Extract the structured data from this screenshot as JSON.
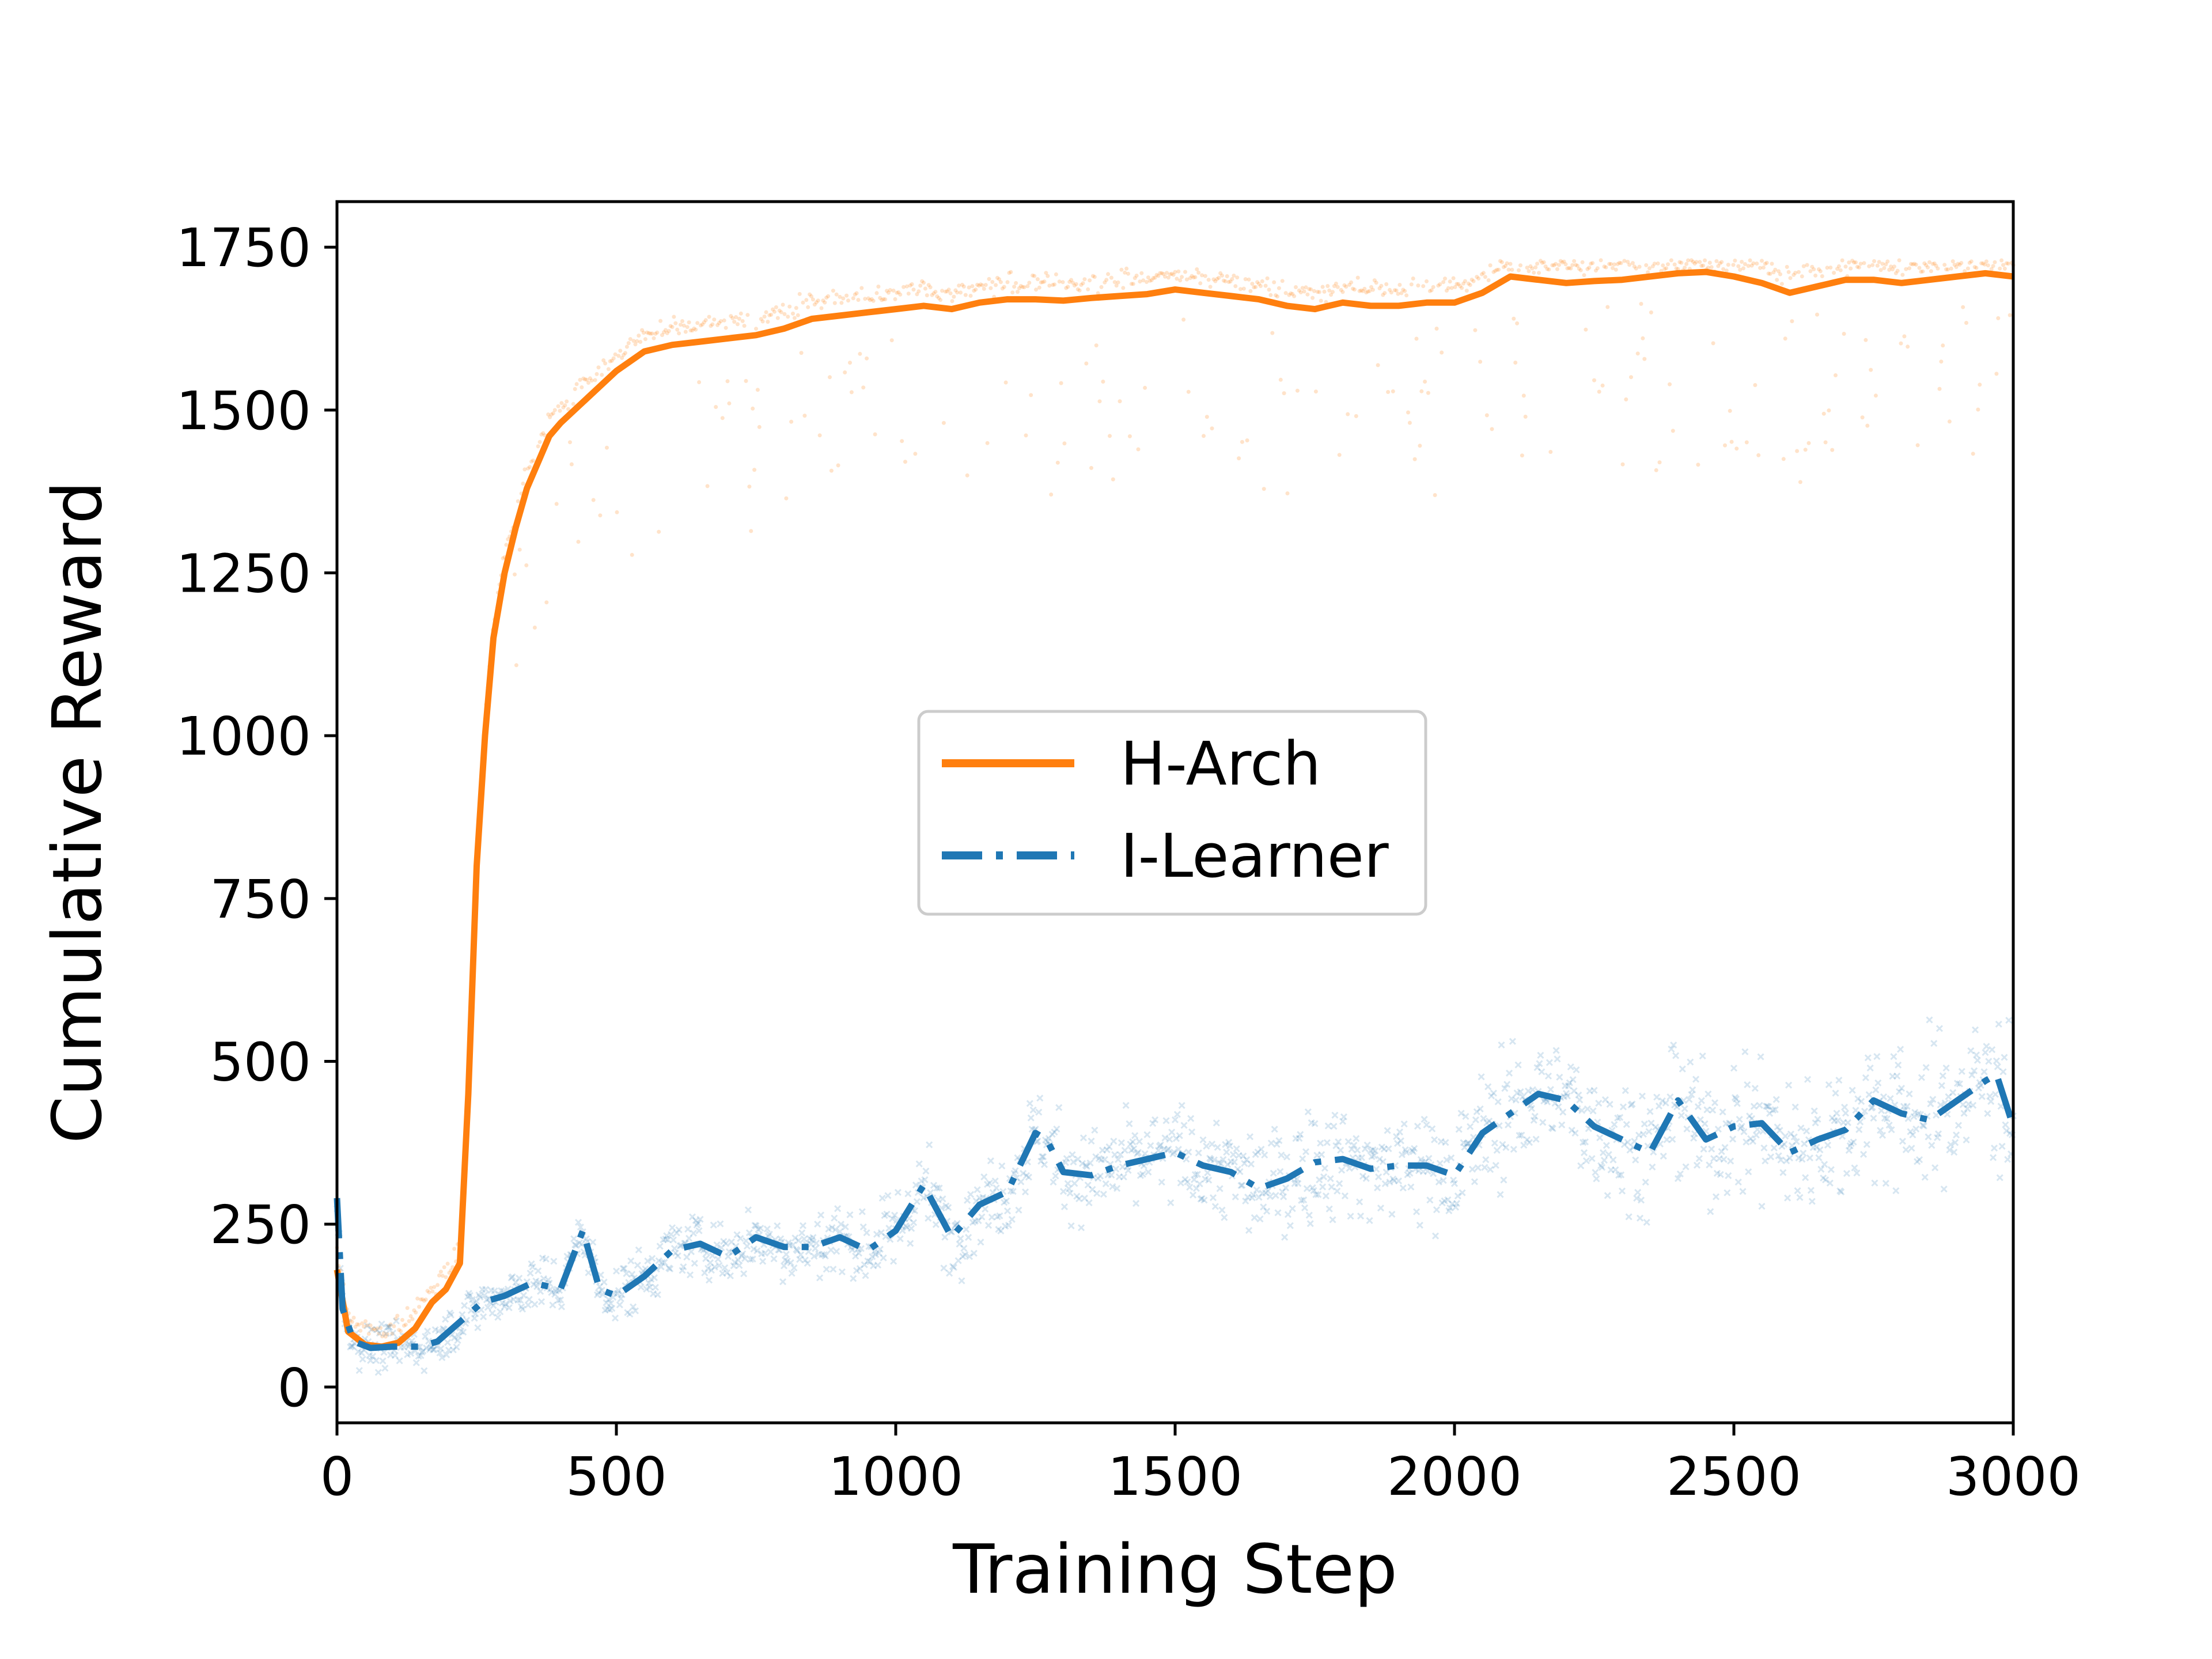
{
  "chart_data": {
    "type": "line",
    "title": "",
    "xlabel": "Training Step",
    "ylabel": "Cumulative Reward",
    "xlim": [
      0,
      3000
    ],
    "ylim": [
      -55,
      1820
    ],
    "grid": false,
    "legend_position": "center",
    "x_ticks": [
      0,
      500,
      1000,
      1500,
      2000,
      2500,
      3000
    ],
    "x_tick_labels": [
      "0",
      "500",
      "1000",
      "1500",
      "2000",
      "2500",
      "3000"
    ],
    "y_ticks": [
      0,
      250,
      500,
      750,
      1000,
      1250,
      1500,
      1750
    ],
    "y_tick_labels": [
      "0",
      "250",
      "500",
      "750",
      "1000",
      "1250",
      "1500",
      "1750"
    ],
    "series": [
      {
        "name": "H-Arch",
        "color": "#ff7f0e",
        "line_style": "solid",
        "raw_marker": "dot",
        "x": [
          0,
          20,
          50,
          80,
          110,
          140,
          170,
          195,
          220,
          235,
          250,
          265,
          280,
          300,
          320,
          340,
          360,
          380,
          400,
          450,
          500,
          550,
          600,
          650,
          700,
          750,
          800,
          850,
          900,
          950,
          1000,
          1050,
          1100,
          1150,
          1200,
          1250,
          1300,
          1350,
          1400,
          1450,
          1500,
          1550,
          1600,
          1650,
          1700,
          1750,
          1800,
          1850,
          1900,
          1950,
          2000,
          2050,
          2100,
          2150,
          2200,
          2250,
          2300,
          2350,
          2400,
          2450,
          2500,
          2550,
          2600,
          2650,
          2700,
          2750,
          2800,
          2850,
          2900,
          2950,
          3000
        ],
        "values": [
          180,
          85,
          65,
          62,
          68,
          90,
          130,
          150,
          190,
          450,
          800,
          1000,
          1150,
          1250,
          1320,
          1380,
          1420,
          1460,
          1480,
          1520,
          1560,
          1590,
          1600,
          1605,
          1610,
          1615,
          1625,
          1640,
          1645,
          1650,
          1655,
          1660,
          1655,
          1665,
          1670,
          1670,
          1668,
          1672,
          1675,
          1678,
          1685,
          1680,
          1675,
          1670,
          1660,
          1655,
          1665,
          1660,
          1660,
          1665,
          1665,
          1680,
          1705,
          1700,
          1695,
          1698,
          1700,
          1705,
          1710,
          1712,
          1705,
          1695,
          1680,
          1690,
          1700,
          1700,
          1695,
          1700,
          1705,
          1710,
          1705
        ]
      },
      {
        "name": "I-Learner",
        "color": "#1f77b4",
        "line_style": "dashdot",
        "raw_marker": "x",
        "x": [
          0,
          10,
          30,
          60,
          100,
          150,
          180,
          220,
          260,
          300,
          350,
          400,
          440,
          470,
          500,
          550,
          600,
          650,
          700,
          750,
          800,
          850,
          900,
          950,
          1000,
          1050,
          1100,
          1150,
          1200,
          1250,
          1270,
          1300,
          1350,
          1400,
          1450,
          1500,
          1550,
          1600,
          1650,
          1700,
          1750,
          1800,
          1850,
          1900,
          1950,
          2000,
          2050,
          2100,
          2150,
          2200,
          2250,
          2300,
          2350,
          2400,
          2450,
          2500,
          2550,
          2600,
          2650,
          2700,
          2750,
          2800,
          2850,
          2900,
          2950,
          2970,
          3000
        ],
        "values": [
          290,
          120,
          70,
          60,
          62,
          62,
          70,
          100,
          130,
          140,
          160,
          150,
          240,
          150,
          140,
          170,
          210,
          220,
          200,
          230,
          215,
          215,
          230,
          210,
          240,
          310,
          230,
          280,
          300,
          390,
          380,
          330,
          325,
          340,
          350,
          360,
          340,
          330,
          305,
          320,
          345,
          350,
          335,
          340,
          340,
          325,
          390,
          420,
          450,
          440,
          400,
          380,
          360,
          440,
          380,
          400,
          405,
          360,
          380,
          395,
          440,
          420,
          410,
          440,
          470,
          480,
          400
        ]
      }
    ]
  }
}
